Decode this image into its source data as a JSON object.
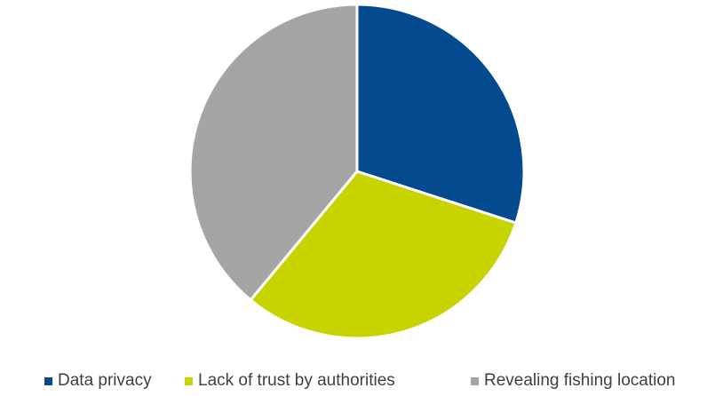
{
  "chart_data": {
    "type": "pie",
    "title": "",
    "start_angle_deg": 0,
    "direction": "clockwise",
    "slice_border_color": "#ffffff",
    "legend_position": "bottom",
    "series": [
      {
        "values": [
          30,
          31,
          39
        ],
        "labels": [
          "Data privacy",
          "Lack of trust by authorities",
          "Revealing fishing location"
        ],
        "colors": [
          "#034A8F",
          "#C7D400",
          "#A5A5A5"
        ]
      }
    ]
  }
}
